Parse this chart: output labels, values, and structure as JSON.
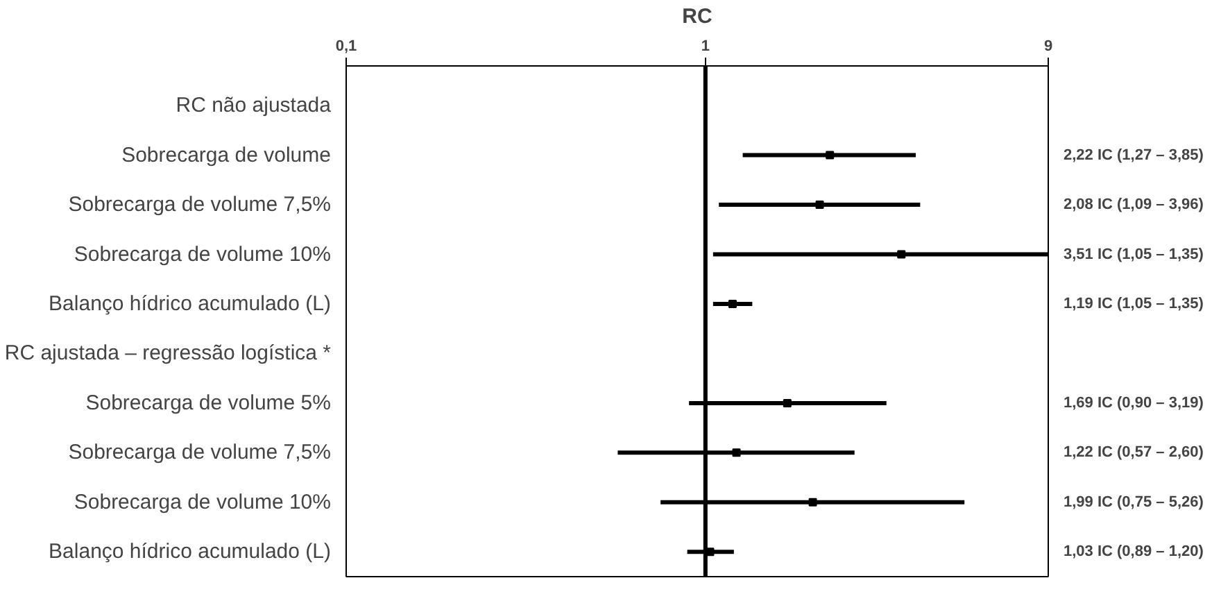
{
  "chart_data": {
    "type": "scatter",
    "orientation": "horizontal",
    "xlabel": "RC",
    "categories": [
      "RC não ajustada",
      "Sobrecarga de volume",
      "Sobrecarga de volume 7,5%",
      "Sobrecarga de volume 10%",
      "Balanço hídrico acumulado (L)",
      "RC ajustada – regressão logística *",
      "Sobrecarga de volume 5%",
      "Sobrecarga de volume 7,5%",
      "Sobrecarga de volume 10%",
      "Balanço hídrico acumulado (L)"
    ],
    "values": [
      null,
      2.22,
      2.08,
      3.51,
      1.19,
      null,
      1.69,
      1.22,
      1.99,
      1.03
    ],
    "errors": [
      null,
      [
        1.27,
        3.85
      ],
      [
        1.09,
        3.96
      ],
      [
        1.05,
        9
      ],
      [
        1.05,
        1.35
      ],
      null,
      [
        0.9,
        3.19
      ],
      [
        0.57,
        2.6
      ],
      [
        0.75,
        5.26
      ],
      [
        0.89,
        1.2
      ]
    ],
    "value_labels": [
      null,
      "2,22 IC (1,27 – 3,85)",
      "2,08 IC (1,09 – 3,96)",
      "3,51 IC (1,05 – 1,35)",
      "1,19 IC (1,05 – 1,35)",
      null,
      "1,69 IC (0,90 – 3,19)",
      "1,22 IC (0,57 – 2,60)",
      "1,99 IC (0,75 – 5,26)",
      "1,03 IC (0,89 – 1,20)"
    ],
    "color": "#000000",
    "marker": "square",
    "log": "x",
    "xlim": [
      0.1,
      9
    ],
    "xticks": [
      {
        "value": 0.1,
        "label": "0,1"
      },
      1,
      9
    ],
    "ref_lines": [
      {
        "axis": "x",
        "value": 1,
        "label": null
      }
    ],
    "grid": false
  }
}
